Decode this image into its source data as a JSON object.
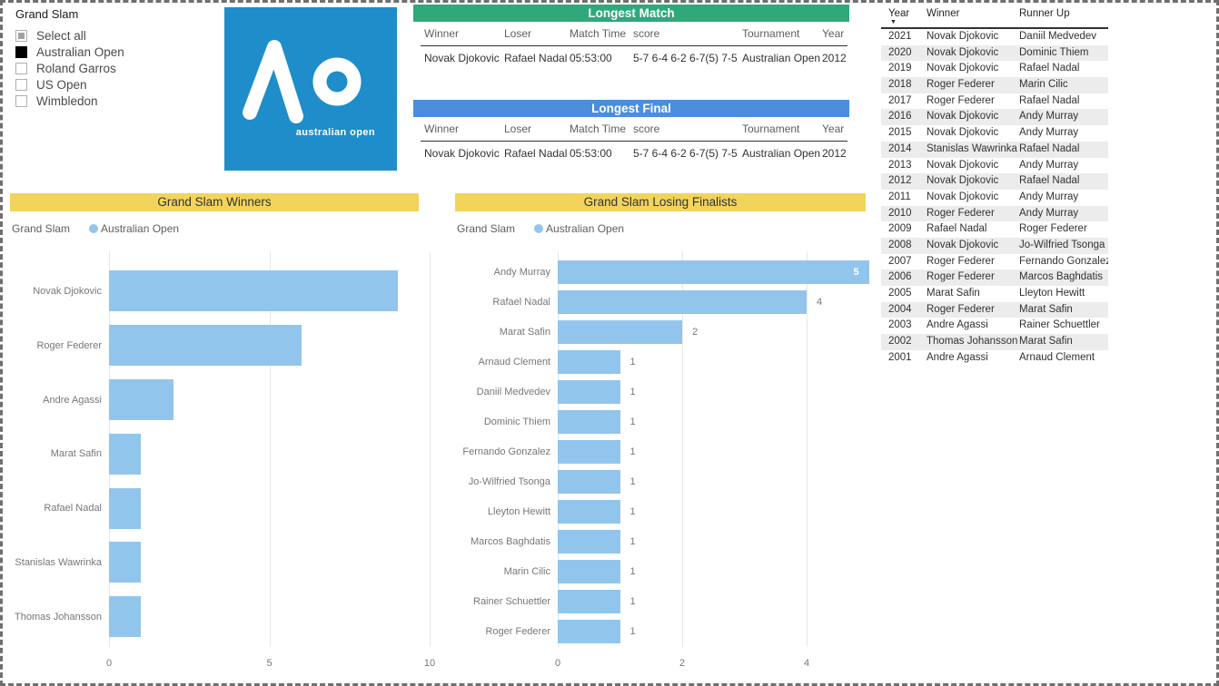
{
  "colors": {
    "green": "#2fa87c",
    "blue": "#4a8edc",
    "yellow": "#f2d45c",
    "bar_blue": "#92c5ec",
    "logo_blue": "#1e8dca",
    "banded_row": "#ececec"
  },
  "slicer": {
    "title": "Grand Slam",
    "items": [
      {
        "label": "Select all",
        "state": "indeterminate"
      },
      {
        "label": "Australian Open",
        "state": "checked"
      },
      {
        "label": "Roland Garros",
        "state": "unchecked"
      },
      {
        "label": "US Open",
        "state": "unchecked"
      },
      {
        "label": "Wimbledon",
        "state": "unchecked"
      }
    ]
  },
  "logo": {
    "text": "australian open",
    "monogram": "AO"
  },
  "longest_match": {
    "title": "Longest Match",
    "columns": [
      "Winner",
      "Loser",
      "Match Time",
      "score",
      "Tournament",
      "Year"
    ],
    "row": [
      "Novak Djokovic",
      "Rafael Nadal",
      "05:53:00",
      "5-7 6-4 6-2 6-7(5) 7-5",
      "Australian Open",
      "2012"
    ]
  },
  "longest_final": {
    "title": "Longest Final",
    "columns": [
      "Winner",
      "Loser",
      "Match Time",
      "score",
      "Tournament",
      "Year"
    ],
    "row": [
      "Novak Djokovic",
      "Rafael Nadal",
      "05:53:00",
      "5-7 6-4 6-2 6-7(5) 7-5",
      "Australian Open",
      "2012"
    ]
  },
  "results_table": {
    "columns": [
      "Year",
      "Winner",
      "Runner Up"
    ],
    "sort_icon": "▼",
    "rows": [
      [
        "2021",
        "Novak Djokovic",
        "Daniil Medvedev"
      ],
      [
        "2020",
        "Novak Djokovic",
        "Dominic Thiem"
      ],
      [
        "2019",
        "Novak Djokovic",
        "Rafael Nadal"
      ],
      [
        "2018",
        "Roger Federer",
        "Marin Cilic"
      ],
      [
        "2017",
        "Roger Federer",
        "Rafael Nadal"
      ],
      [
        "2016",
        "Novak Djokovic",
        "Andy Murray"
      ],
      [
        "2015",
        "Novak Djokovic",
        "Andy Murray"
      ],
      [
        "2014",
        "Stanislas Wawrinka",
        "Rafael Nadal"
      ],
      [
        "2013",
        "Novak Djokovic",
        "Andy Murray"
      ],
      [
        "2012",
        "Novak Djokovic",
        "Rafael Nadal"
      ],
      [
        "2011",
        "Novak Djokovic",
        "Andy Murray"
      ],
      [
        "2010",
        "Roger Federer",
        "Andy Murray"
      ],
      [
        "2009",
        "Rafael Nadal",
        "Roger Federer"
      ],
      [
        "2008",
        "Novak Djokovic",
        "Jo-Wilfried Tsonga"
      ],
      [
        "2007",
        "Roger Federer",
        "Fernando Gonzalez"
      ],
      [
        "2006",
        "Roger Federer",
        "Marcos Baghdatis"
      ],
      [
        "2005",
        "Marat Safin",
        "Lleyton Hewitt"
      ],
      [
        "2004",
        "Roger Federer",
        "Marat Safin"
      ],
      [
        "2003",
        "Andre Agassi",
        "Rainer Schuettler"
      ],
      [
        "2002",
        "Thomas Johansson",
        "Marat Safin"
      ],
      [
        "2001",
        "Andre Agassi",
        "Arnaud Clement"
      ]
    ]
  },
  "chart_data": [
    {
      "type": "bar",
      "orientation": "horizontal",
      "title": "Grand Slam Winners",
      "legend": {
        "label": "Grand Slam",
        "series": "Australian Open",
        "position": "top-left"
      },
      "categories": [
        "Novak Djokovic",
        "Roger Federer",
        "Andre Agassi",
        "Marat Safin",
        "Rafael Nadal",
        "Stanislas Wawrinka",
        "Thomas Johansson"
      ],
      "values": [
        9,
        6,
        2,
        1,
        1,
        1,
        1
      ],
      "xlabel": "",
      "ylabel": "",
      "xlim": [
        0,
        10
      ],
      "xticks": [
        0,
        5,
        10
      ],
      "grid": true,
      "data_labels": false,
      "bar_color": "#92c5ec"
    },
    {
      "type": "bar",
      "orientation": "horizontal",
      "title": "Grand Slam Losing Finalists",
      "legend": {
        "label": "Grand Slam",
        "series": "Australian Open",
        "position": "top-left"
      },
      "categories": [
        "Andy Murray",
        "Rafael Nadal",
        "Marat Safin",
        "Arnaud Clement",
        "Daniil Medvedev",
        "Dominic Thiem",
        "Fernando Gonzalez",
        "Jo-Wilfried Tsonga",
        "Lleyton Hewitt",
        "Marcos Baghdatis",
        "Marin Cilic",
        "Rainer Schuettler",
        "Roger Federer"
      ],
      "values": [
        5,
        4,
        2,
        1,
        1,
        1,
        1,
        1,
        1,
        1,
        1,
        1,
        1
      ],
      "xlabel": "",
      "ylabel": "",
      "xlim": [
        0,
        5
      ],
      "xticks": [
        0,
        2,
        4
      ],
      "grid": true,
      "data_labels": true,
      "max_label_inside": true,
      "bar_color": "#92c5ec"
    }
  ]
}
